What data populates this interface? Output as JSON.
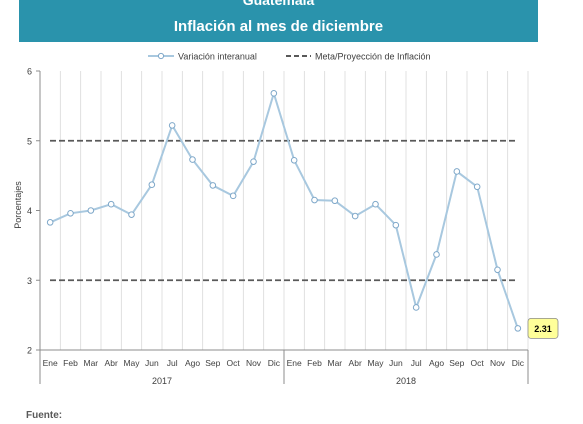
{
  "header": {
    "country": "Guatemala",
    "subtitle": "Inflación al mes de diciembre"
  },
  "footer": {
    "source_label": "Fuente:"
  },
  "colors": {
    "header_bg": "#2a93ac",
    "series_line": "#a8c8df",
    "target_line": "#595959",
    "callout_bg": "#ffff99"
  },
  "chart_data": {
    "type": "line",
    "ylabel": "Porcentajes",
    "ylim": [
      2,
      6
    ],
    "yticks": [
      2,
      3,
      4,
      5,
      6
    ],
    "grid": "vertical",
    "legend_position": "top",
    "categories": [
      "Ene",
      "Feb",
      "Mar",
      "Abr",
      "May",
      "Jun",
      "Jul",
      "Ago",
      "Sep",
      "Oct",
      "Nov",
      "Dic",
      "Ene",
      "Feb",
      "Mar",
      "Abr",
      "May",
      "Jun",
      "Jul",
      "Ago",
      "Sep",
      "Oct",
      "Nov",
      "Dic"
    ],
    "groups": [
      {
        "label": "2017",
        "start": 0,
        "end": 11
      },
      {
        "label": "2018",
        "start": 12,
        "end": 23
      }
    ],
    "series": [
      {
        "name": "Variación interanual",
        "values": [
          3.83,
          3.96,
          4.0,
          4.09,
          3.94,
          4.37,
          5.22,
          4.73,
          4.36,
          4.21,
          4.7,
          5.68,
          4.72,
          4.15,
          4.14,
          3.92,
          4.09,
          3.79,
          2.61,
          3.37,
          4.56,
          4.34,
          3.15,
          2.31
        ]
      }
    ],
    "targets": [
      {
        "name": "Meta/Proyección de Inflación",
        "values": [
          5,
          3
        ]
      }
    ],
    "annotation": {
      "index": 23,
      "text": "2.31"
    }
  }
}
